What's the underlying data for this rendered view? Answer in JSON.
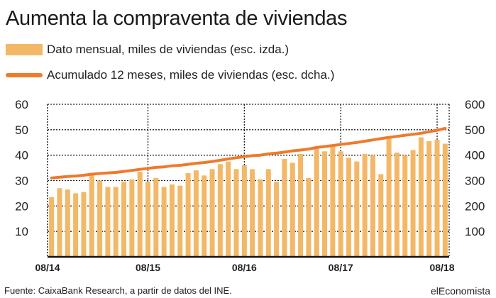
{
  "title": "Aumenta la compraventa de viviendas",
  "legend": {
    "bars": "Dato mensual, miles de viviendas (esc. izda.)",
    "line": "Acumulado 12 meses, miles de viviendas (esc. dcha.)"
  },
  "source": "Fuente: CaixaBank Research, a partir de datos del INE.",
  "brand": "elEconomista",
  "colors": {
    "bar": "#f3b867",
    "line": "#ee7a2c",
    "grid": "#222222"
  },
  "chart_data": {
    "type": "bar",
    "x_tick_labels": [
      "08/14",
      "08/15",
      "08/16",
      "08/17",
      "08/18"
    ],
    "left_axis": {
      "ylim": [
        0,
        60
      ],
      "ticks": [
        10,
        20,
        30,
        40,
        50,
        60
      ]
    },
    "right_axis": {
      "ylim": [
        0,
        600
      ],
      "ticks": [
        100,
        200,
        300,
        400,
        500,
        600
      ]
    },
    "grid": true,
    "series": [
      {
        "name": "Dato mensual, miles de viviendas (esc. izda.)",
        "type": "bar",
        "axis": "left",
        "values": [
          23.5,
          27,
          26.5,
          25,
          25.5,
          32.5,
          30,
          27.5,
          27.5,
          29.5,
          30.5,
          33.5,
          29.5,
          31,
          27.5,
          28.5,
          28,
          33,
          34,
          32,
          34.5,
          36.5,
          37.5,
          34.5,
          36,
          34.5,
          30.5,
          34.5,
          29.5,
          38.5,
          37,
          40.5,
          31,
          43,
          41.5,
          44,
          41.5,
          39,
          37.5,
          40.5,
          40,
          32.5,
          47,
          41,
          40,
          42,
          47,
          45.5,
          46,
          44.5
        ]
      },
      {
        "name": "Acumulado 12 meses, miles de viviendas (esc. dcha.)",
        "type": "line",
        "axis": "right",
        "values": [
          310,
          313,
          316,
          318,
          321,
          325,
          328,
          330,
          332,
          336,
          340,
          344,
          348,
          352,
          354,
          358,
          360,
          364,
          368,
          371,
          375,
          380,
          385,
          390,
          394,
          398,
          400,
          405,
          408,
          412,
          417,
          420,
          424,
          430,
          434,
          438,
          442,
          446,
          450,
          455,
          460,
          465,
          470,
          474,
          478,
          482,
          486,
          492,
          498,
          505
        ]
      }
    ]
  }
}
